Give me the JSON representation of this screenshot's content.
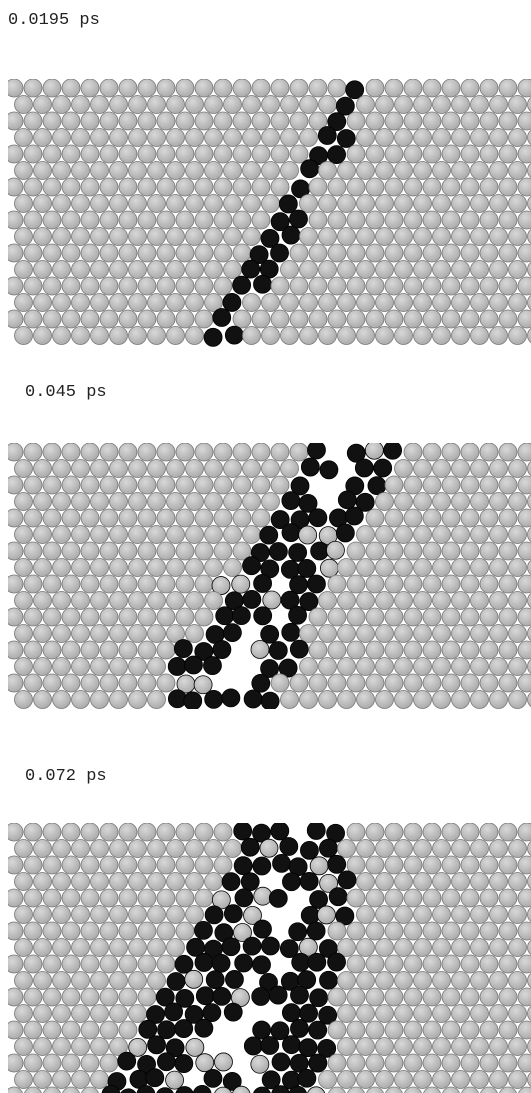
{
  "panels": [
    {
      "label": "0.0195 ps"
    },
    {
      "label": "0.045 ps"
    },
    {
      "label": "0.072 ps"
    }
  ]
}
